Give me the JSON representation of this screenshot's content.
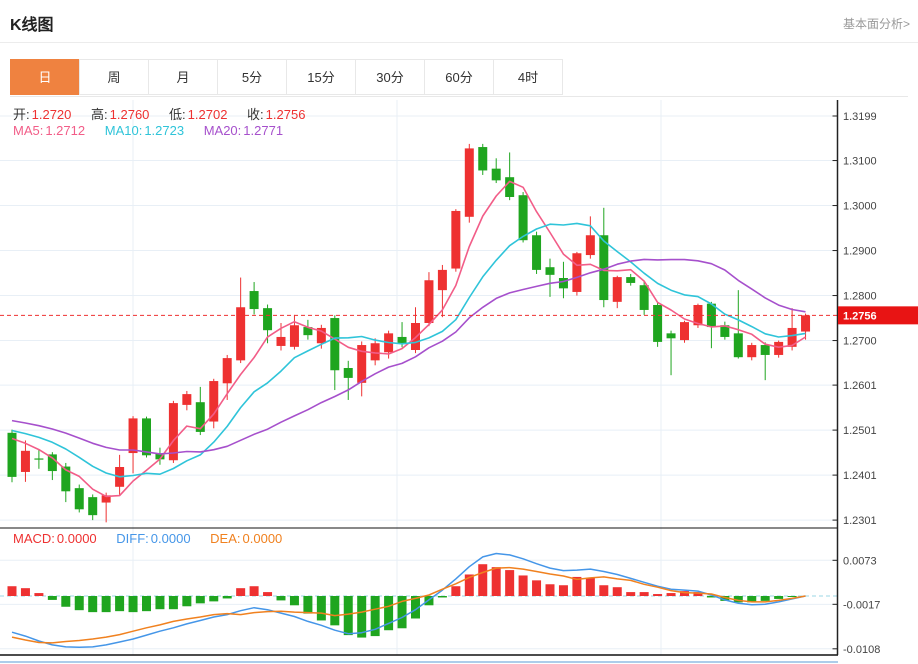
{
  "header": {
    "title": "K线图",
    "link_label": "基本面分析>"
  },
  "tabs": [
    {
      "label": "日",
      "active": true
    },
    {
      "label": "周",
      "active": false
    },
    {
      "label": "月",
      "active": false
    },
    {
      "label": "5分",
      "active": false
    },
    {
      "label": "15分",
      "active": false
    },
    {
      "label": "30分",
      "active": false
    },
    {
      "label": "60分",
      "active": false
    },
    {
      "label": "4时",
      "active": false
    }
  ],
  "main_legend": {
    "open_label": "开:",
    "open": "1.2720",
    "high_label": "高:",
    "high": "1.2760",
    "low_label": "低:",
    "low": "1.2702",
    "close_label": "收:",
    "close": "1.2756"
  },
  "ma_legend": {
    "ma5_label": "MA5:",
    "ma5": "1.2712",
    "ma10_label": "MA10:",
    "ma10": "1.2723",
    "ma20_label": "MA20:",
    "ma20": "1.2771"
  },
  "macd_legend": {
    "macd_label": "MACD:",
    "macd": "0.0000",
    "diff_label": "DIFF:",
    "diff": "0.0000",
    "dea_label": "DEA:",
    "dea": "0.0000"
  },
  "colors": {
    "up": "#ee3131",
    "down": "#1fa51f",
    "ma5": "#f25d88",
    "ma10": "#2fc4d9",
    "ma20": "#a650cc",
    "diff": "#4596e8",
    "dea": "#f0811f",
    "tab_active": "#ef8240",
    "last_price_bg": "#e81414",
    "grid": "#e8eff6",
    "axis": "#222",
    "zero_dash": "#9bd7e6",
    "bottom_strip": "#5b9bd5"
  },
  "chart_data": {
    "type": "candlestick",
    "title": "K线图",
    "timeframe": "日",
    "legend_position": "top-left",
    "grid": true,
    "price_axis": {
      "labels": [
        1.3199,
        1.31,
        1.3,
        1.29,
        1.28,
        1.27,
        1.2601,
        1.2501,
        1.2401,
        1.2301
      ]
    },
    "macd_axis": {
      "labels": [
        0.0073,
        -0.0017,
        -0.0108
      ]
    },
    "last_price": 1.2756,
    "ohlc_current": {
      "open": 1.272,
      "high": 1.276,
      "low": 1.2702,
      "close": 1.2756
    },
    "ma_current": {
      "ma5": 1.2712,
      "ma10": 1.2723,
      "ma20": 1.2771
    },
    "macd_current": {
      "macd": 0.0,
      "diff": 0.0,
      "dea": 0.0
    },
    "ma_periods": [
      5,
      10,
      20
    ],
    "ma_history_closes": [
      1.2562,
      1.2558,
      1.2554,
      1.255,
      1.2546,
      1.2542,
      1.2538,
      1.2534,
      1.253,
      1.2527,
      1.2524,
      1.2521,
      1.2518,
      1.2515,
      1.2512,
      1.2509,
      1.2506,
      1.2502,
      1.2498
    ],
    "candles": [
      [
        1.2495,
        1.2502,
        1.2385,
        1.2397
      ],
      [
        1.2408,
        1.2478,
        1.2386,
        1.2455
      ],
      [
        1.2438,
        1.2457,
        1.2415,
        1.2436
      ],
      [
        1.2447,
        1.2452,
        1.239,
        1.241
      ],
      [
        1.242,
        1.2428,
        1.2341,
        1.2365
      ],
      [
        1.2372,
        1.238,
        1.2318,
        1.2325
      ],
      [
        1.2352,
        1.2358,
        1.2301,
        1.2312
      ],
      [
        1.234,
        1.2362,
        1.2296,
        1.2356
      ],
      [
        1.2375,
        1.2446,
        1.2357,
        1.2419
      ],
      [
        1.245,
        1.2532,
        1.2405,
        1.2527
      ],
      [
        1.2527,
        1.2531,
        1.244,
        1.2445
      ],
      [
        1.2448,
        1.2462,
        1.2424,
        1.2436
      ],
      [
        1.2434,
        1.2566,
        1.2428,
        1.2561
      ],
      [
        1.2557,
        1.2588,
        1.2545,
        1.2581
      ],
      [
        1.2563,
        1.2597,
        1.249,
        1.2497
      ],
      [
        1.252,
        1.2615,
        1.2505,
        1.261
      ],
      [
        1.2605,
        1.2668,
        1.2568,
        1.2661
      ],
      [
        1.2656,
        1.284,
        1.265,
        1.2774
      ],
      [
        1.281,
        1.283,
        1.2758,
        1.277
      ],
      [
        1.2772,
        1.278,
        1.2694,
        1.2723
      ],
      [
        1.2688,
        1.2739,
        1.2678,
        1.2708
      ],
      [
        1.2686,
        1.2757,
        1.268,
        1.2734
      ],
      [
        1.273,
        1.2746,
        1.2702,
        1.2712
      ],
      [
        1.2694,
        1.2735,
        1.2682,
        1.2728
      ],
      [
        1.275,
        1.2756,
        1.259,
        1.2634
      ],
      [
        1.2639,
        1.2655,
        1.2568,
        1.2617
      ],
      [
        1.2606,
        1.2698,
        1.2576,
        1.269
      ],
      [
        1.2656,
        1.2705,
        1.2645,
        1.2694
      ],
      [
        1.2674,
        1.2722,
        1.266,
        1.2716
      ],
      [
        1.2708,
        1.2741,
        1.2685,
        1.2694
      ],
      [
        1.2679,
        1.2774,
        1.2672,
        1.2739
      ],
      [
        1.2739,
        1.2852,
        1.2732,
        1.2834
      ],
      [
        1.2812,
        1.2868,
        1.2752,
        1.2857
      ],
      [
        1.286,
        1.2992,
        1.2853,
        1.2988
      ],
      [
        1.2975,
        1.3137,
        1.2962,
        1.3127
      ],
      [
        1.313,
        1.3137,
        1.3068,
        1.3078
      ],
      [
        1.3082,
        1.3105,
        1.305,
        1.3056
      ],
      [
        1.3063,
        1.3118,
        1.3012,
        1.3019
      ],
      [
        1.3023,
        1.303,
        1.2918,
        1.2923
      ],
      [
        1.2934,
        1.2942,
        1.2848,
        1.2857
      ],
      [
        1.2863,
        1.2882,
        1.2797,
        1.2846
      ],
      [
        1.2839,
        1.2875,
        1.2794,
        1.2816
      ],
      [
        1.2808,
        1.2897,
        1.28,
        1.2894
      ],
      [
        1.289,
        1.2976,
        1.2882,
        1.2934
      ],
      [
        1.2934,
        1.2995,
        1.2774,
        1.279
      ],
      [
        1.2786,
        1.2844,
        1.2772,
        1.2841
      ],
      [
        1.2841,
        1.2848,
        1.2822,
        1.2828
      ],
      [
        1.2823,
        1.2832,
        1.2757,
        1.2768
      ],
      [
        1.2779,
        1.2784,
        1.2686,
        1.2697
      ],
      [
        1.2716,
        1.2722,
        1.2623,
        1.2705
      ],
      [
        1.2701,
        1.2744,
        1.2695,
        1.2741
      ],
      [
        1.2734,
        1.2782,
        1.2728,
        1.2779
      ],
      [
        1.2782,
        1.2786,
        1.2683,
        1.273
      ],
      [
        1.2734,
        1.2742,
        1.2702,
        1.2708
      ],
      [
        1.2716,
        1.2812,
        1.266,
        1.2663
      ],
      [
        1.2663,
        1.2695,
        1.2656,
        1.269
      ],
      [
        1.269,
        1.2696,
        1.2612,
        1.2668
      ],
      [
        1.2668,
        1.27,
        1.2662,
        1.2697
      ],
      [
        1.2686,
        1.2772,
        1.2678,
        1.2728
      ],
      [
        1.272,
        1.276,
        1.2702,
        1.2756
      ]
    ],
    "macd": {
      "hist": [
        0.002,
        0.0016,
        0.0006,
        -0.0008,
        -0.0022,
        -0.0029,
        -0.0033,
        -0.0033,
        -0.0031,
        -0.0033,
        -0.0031,
        -0.0027,
        -0.0027,
        -0.0021,
        -0.0015,
        -0.0011,
        -0.0005,
        0.0016,
        0.002,
        0.0008,
        -0.0009,
        -0.0019,
        -0.0036,
        -0.005,
        -0.006,
        -0.008,
        -0.0085,
        -0.0082,
        -0.007,
        -0.0066,
        -0.0046,
        -0.0019,
        -0.0003,
        0.002,
        0.0044,
        0.0065,
        0.0059,
        0.0053,
        0.0042,
        0.0032,
        0.0024,
        0.0022,
        0.0039,
        0.0037,
        0.0022,
        0.0018,
        0.0008,
        0.0008,
        0.0004,
        0.0006,
        0.001,
        0.0008,
        -0.0003,
        -0.001,
        -0.0013,
        -0.0013,
        -0.001,
        -0.0006,
        -0.0002,
        0.0
      ],
      "diff": [
        -0.0074,
        -0.0082,
        -0.0092,
        -0.01,
        -0.0104,
        -0.0105,
        -0.0104,
        -0.01,
        -0.0094,
        -0.0088,
        -0.008,
        -0.0072,
        -0.0065,
        -0.0057,
        -0.005,
        -0.0043,
        -0.0038,
        -0.003,
        -0.0024,
        -0.0028,
        -0.0035,
        -0.0042,
        -0.0052,
        -0.006,
        -0.007,
        -0.0077,
        -0.0075,
        -0.0068,
        -0.0056,
        -0.0044,
        -0.0028,
        -0.0008,
        0.0012,
        0.0035,
        0.006,
        0.008,
        0.0087,
        0.0084,
        0.0076,
        0.0066,
        0.0057,
        0.0052,
        0.0053,
        0.0055,
        0.005,
        0.0044,
        0.0036,
        0.0028,
        0.002,
        0.0014,
        0.0012,
        0.001,
        0.0002,
        -0.0008,
        -0.0015,
        -0.0018,
        -0.0017,
        -0.0012,
        -0.0006,
        0.0
      ],
      "dea": [
        -0.0084,
        -0.009,
        -0.0095,
        -0.0096,
        -0.0093,
        -0.0091,
        -0.0088,
        -0.0084,
        -0.0079,
        -0.0072,
        -0.0065,
        -0.0059,
        -0.0052,
        -0.0047,
        -0.0043,
        -0.0038,
        -0.0036,
        -0.0038,
        -0.0034,
        -0.0032,
        -0.0031,
        -0.0033,
        -0.0034,
        -0.0035,
        -0.004,
        -0.0037,
        -0.0033,
        -0.0027,
        -0.0021,
        -0.0011,
        -0.0005,
        0.0002,
        0.0014,
        0.0025,
        0.0038,
        0.0048,
        0.0057,
        0.0058,
        0.0055,
        0.005,
        0.0045,
        0.0041,
        0.0034,
        0.0037,
        0.0039,
        0.0035,
        0.0032,
        0.0024,
        0.0018,
        0.0011,
        0.0007,
        0.0006,
        0.0004,
        -0.0003,
        -0.0009,
        -0.0012,
        -0.0012,
        -0.0009,
        -0.0005,
        0.0
      ]
    }
  }
}
